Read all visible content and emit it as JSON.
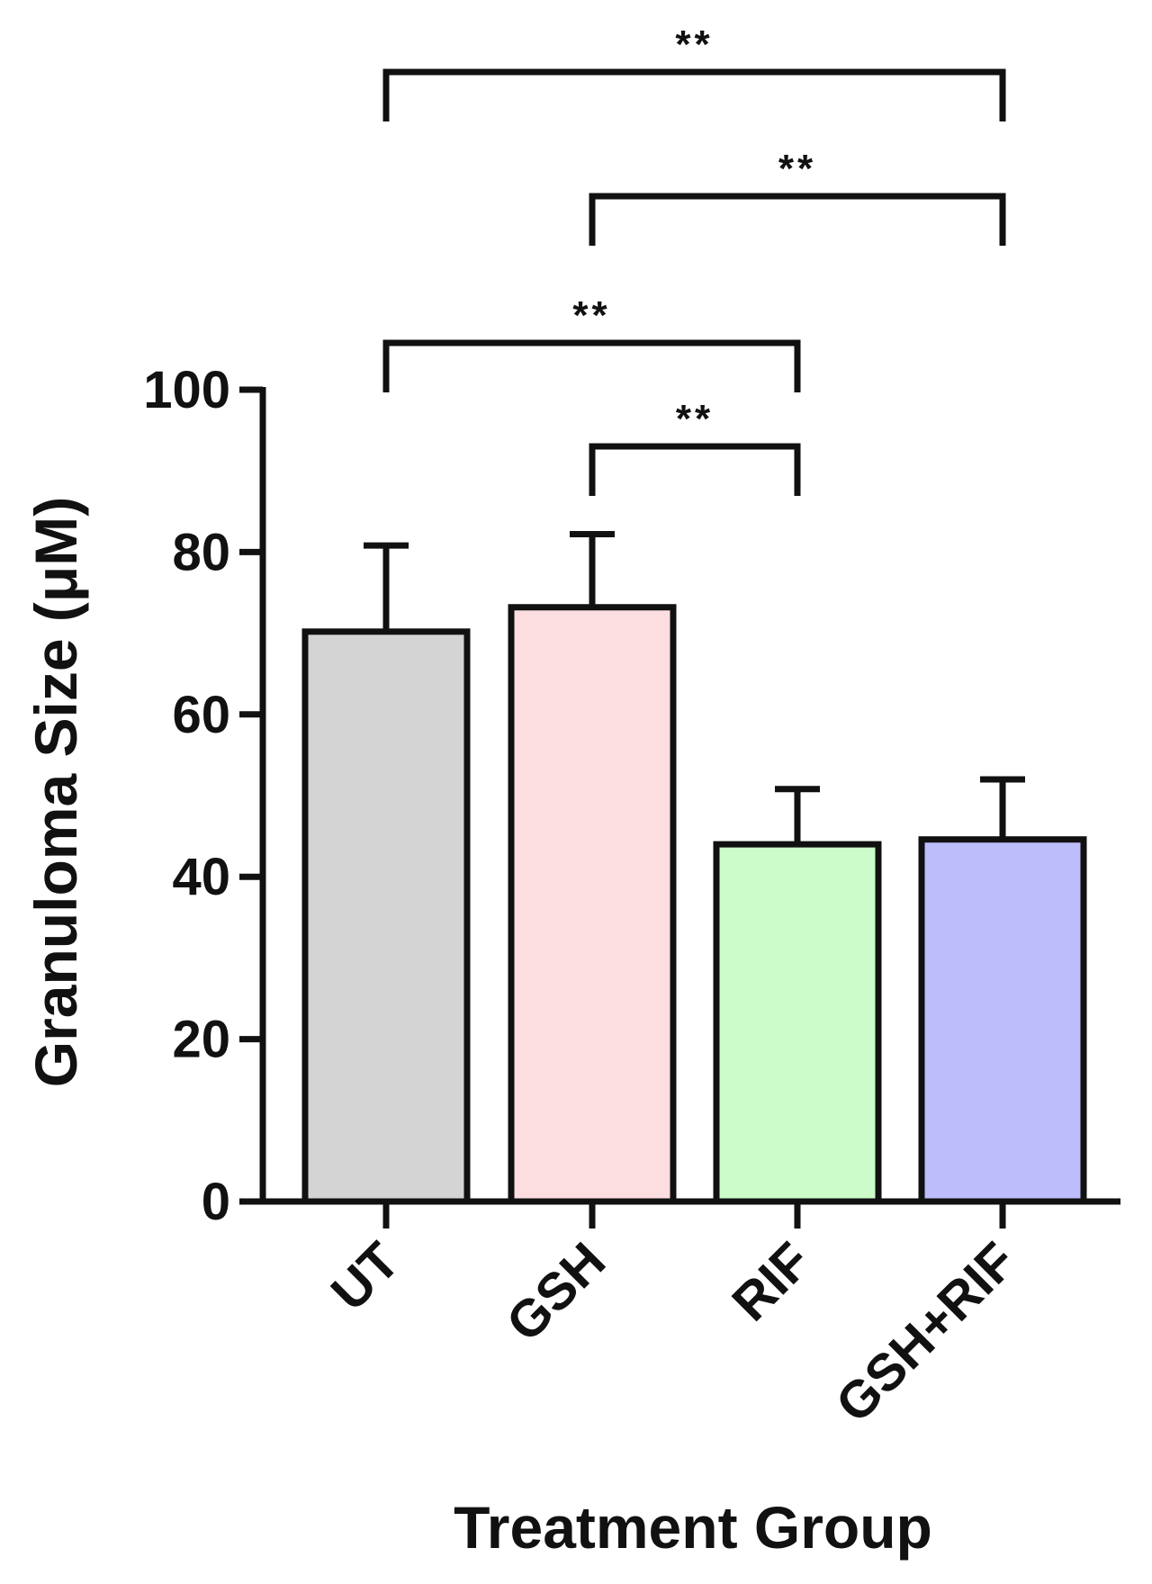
{
  "chart_data": {
    "type": "bar",
    "title": "",
    "xlabel": "Treatment Group",
    "ylabel": "Granuloma Size (μM)",
    "ylim": [
      0,
      100
    ],
    "yticks": [
      0,
      20,
      40,
      60,
      80,
      100
    ],
    "grid": false,
    "categories": [
      "UT",
      "GSH",
      "RIF",
      "GSH+RIF"
    ],
    "values": [
      70.2,
      73.2,
      44.0,
      44.6
    ],
    "error_upper": [
      10.6,
      9.0,
      6.8,
      7.4
    ],
    "colors": [
      "#d4d4d4",
      "#fcdde0",
      "#ccfcc9",
      "#bdbdfc"
    ],
    "significance": [
      {
        "from": "UT",
        "to": "GSH+RIF",
        "label": "**"
      },
      {
        "from": "GSH",
        "to": "GSH+RIF",
        "label": "**"
      },
      {
        "from": "UT",
        "to": "RIF",
        "label": "**"
      },
      {
        "from": "GSH",
        "to": "RIF",
        "label": "**"
      }
    ]
  }
}
